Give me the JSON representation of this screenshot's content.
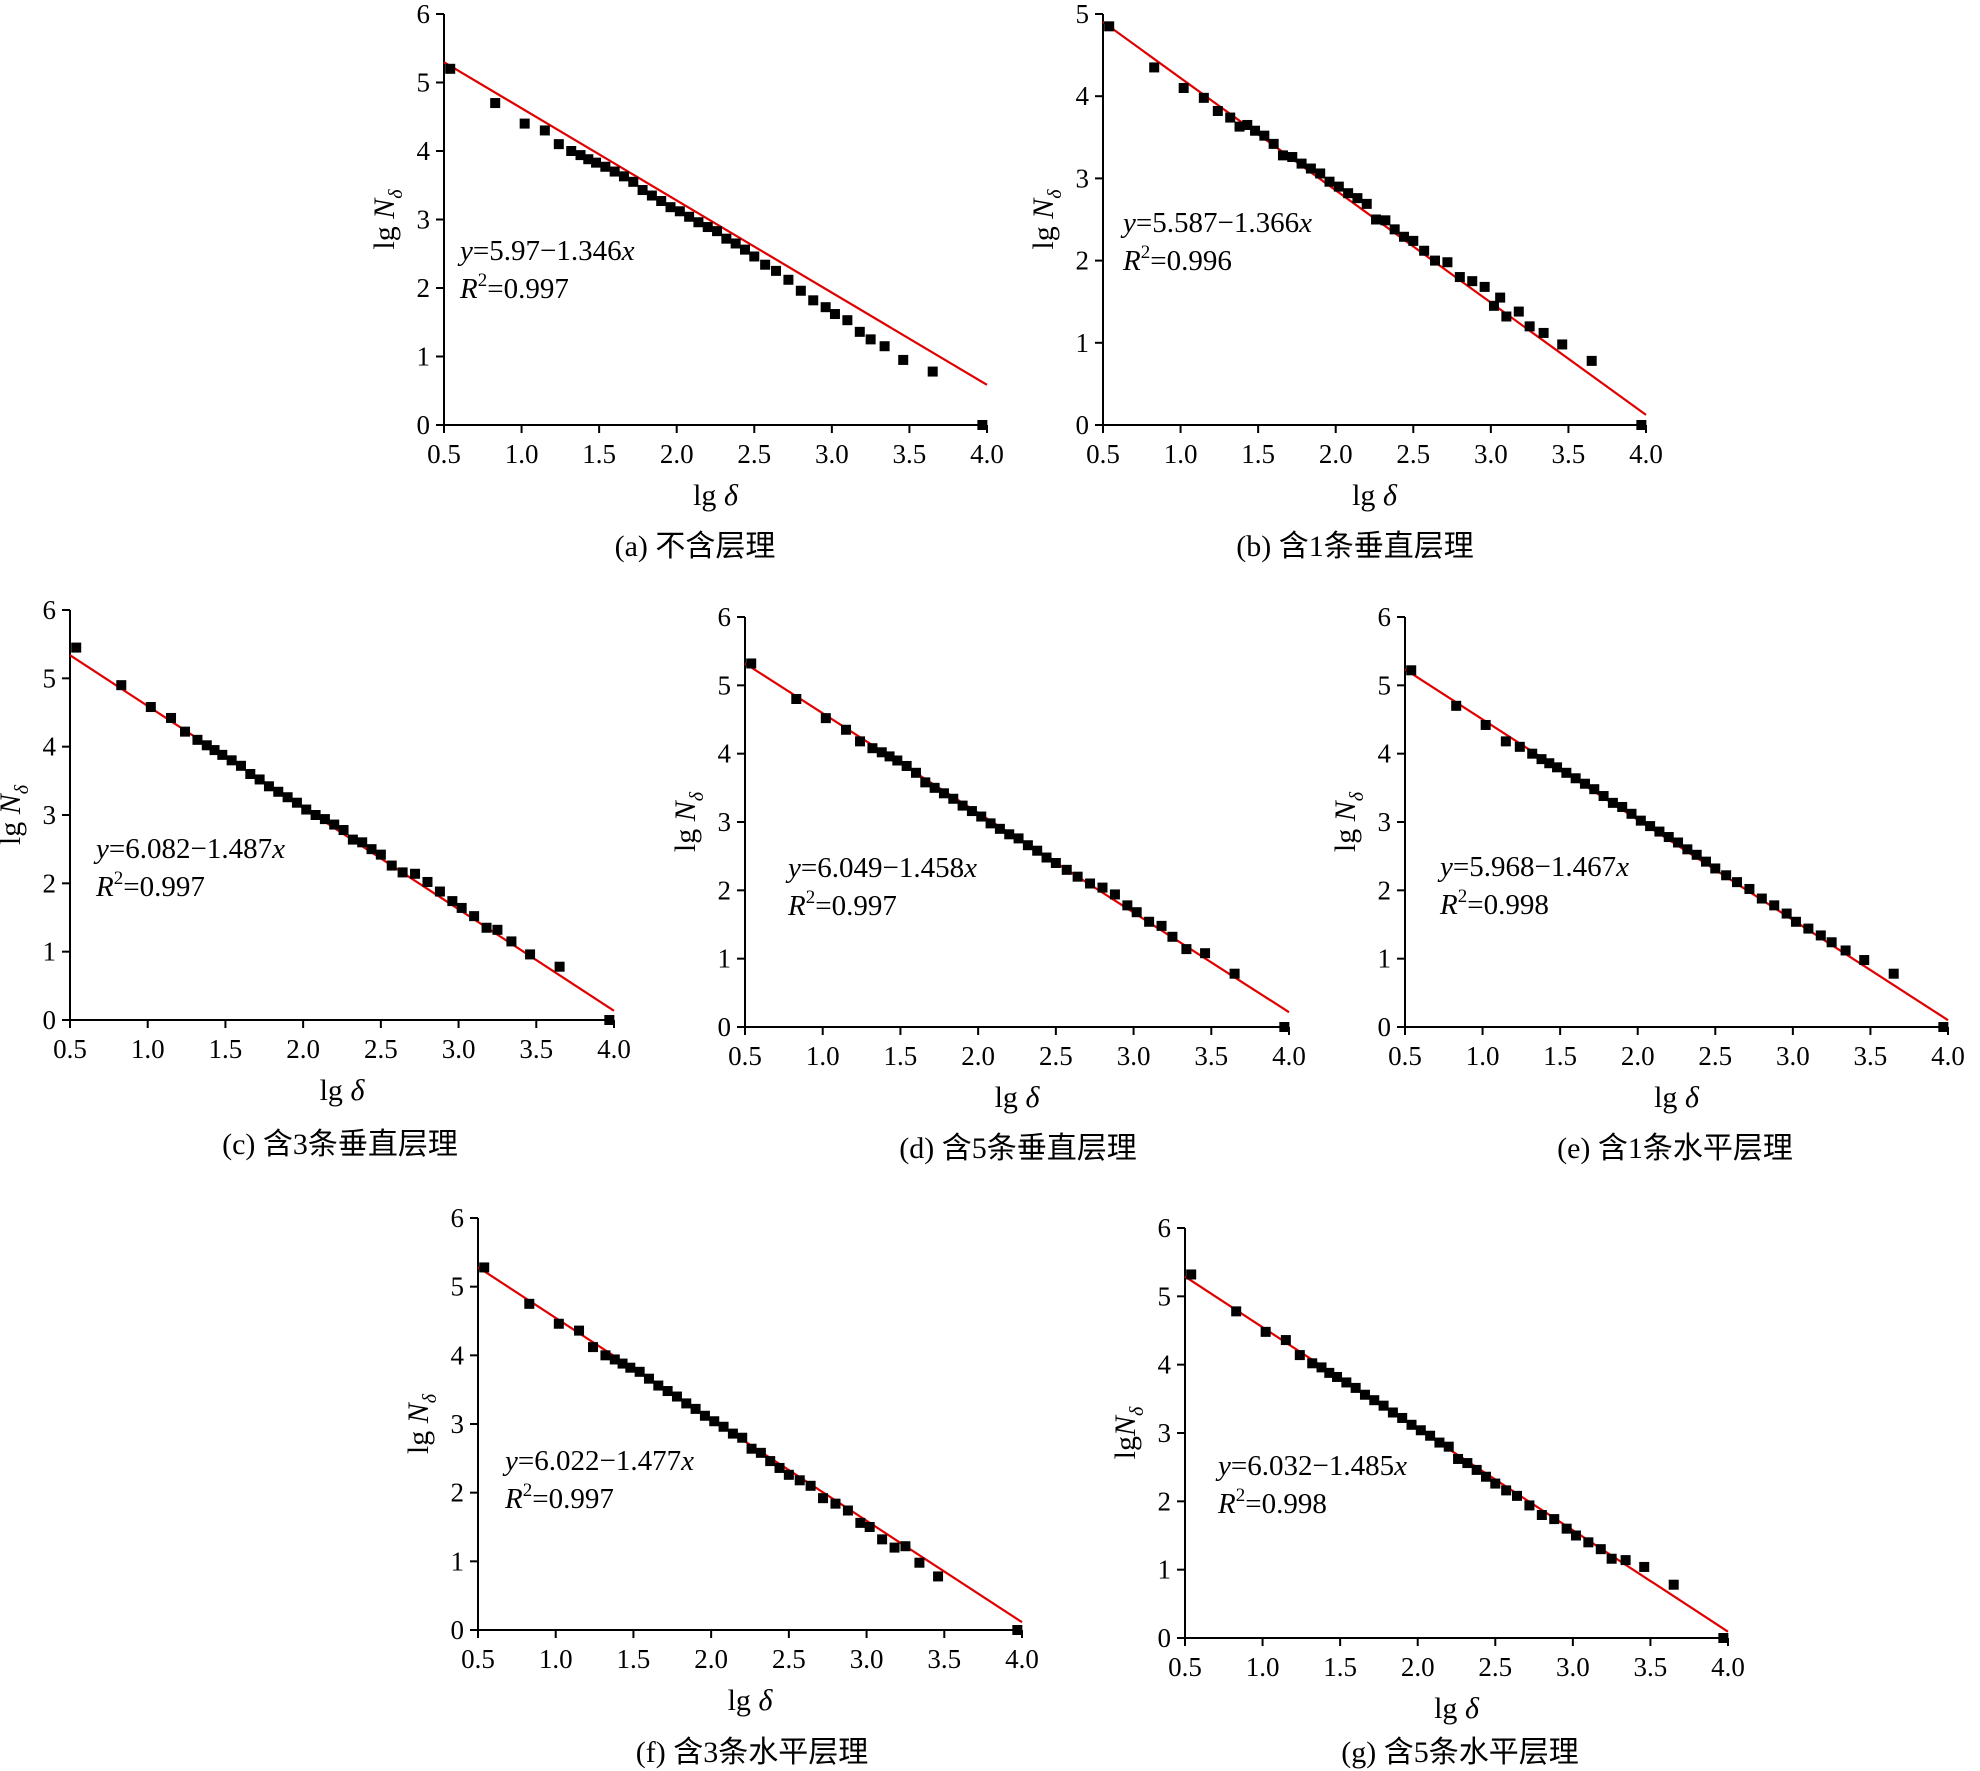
{
  "colors": {
    "fit_line": "#e00000",
    "points": "#000000",
    "axis": "#000000"
  },
  "x_axis_ticks": [
    "0.5",
    "1.0",
    "1.5",
    "2.0",
    "2.5",
    "3.0",
    "3.5",
    "4.0"
  ],
  "chart_data": [
    {
      "type": "scatter",
      "caption": "(a)  不含层理",
      "xlabel_base": "lg ",
      "xlabel_sym": "δ",
      "ylabel_base": "lg ",
      "ylabel_sym": "N",
      "ylabel_sub": "δ",
      "eq_y": "y",
      "eq_rest": "=5.97−1.346",
      "eq_x": "x",
      "r2_r": "R",
      "r2_sup": "2",
      "r2_rest": "=0.997",
      "xlim": [
        0.5,
        4.0
      ],
      "ylim": [
        0,
        6
      ],
      "yticks": [
        "0",
        "1",
        "2",
        "3",
        "4",
        "5",
        "6"
      ],
      "fit": {
        "intercept": 5.97,
        "slope": -1.346,
        "x_range": [
          0.5,
          4.0
        ]
      },
      "points": [
        [
          0.54,
          5.2
        ],
        [
          0.83,
          4.7
        ],
        [
          1.02,
          4.4
        ],
        [
          1.15,
          4.3
        ],
        [
          1.24,
          4.1
        ],
        [
          1.32,
          4.0
        ],
        [
          1.38,
          3.94
        ],
        [
          1.43,
          3.88
        ],
        [
          1.48,
          3.83
        ],
        [
          1.54,
          3.77
        ],
        [
          1.6,
          3.7
        ],
        [
          1.66,
          3.63
        ],
        [
          1.72,
          3.55
        ],
        [
          1.78,
          3.43
        ],
        [
          1.84,
          3.35
        ],
        [
          1.9,
          3.27
        ],
        [
          1.96,
          3.18
        ],
        [
          2.02,
          3.12
        ],
        [
          2.08,
          3.04
        ],
        [
          2.14,
          2.96
        ],
        [
          2.2,
          2.89
        ],
        [
          2.26,
          2.83
        ],
        [
          2.32,
          2.72
        ],
        [
          2.38,
          2.65
        ],
        [
          2.44,
          2.56
        ],
        [
          2.5,
          2.46
        ],
        [
          2.57,
          2.34
        ],
        [
          2.64,
          2.25
        ],
        [
          2.72,
          2.12
        ],
        [
          2.8,
          1.96
        ],
        [
          2.88,
          1.82
        ],
        [
          2.96,
          1.72
        ],
        [
          3.02,
          1.62
        ],
        [
          3.1,
          1.53
        ],
        [
          3.18,
          1.36
        ],
        [
          3.25,
          1.25
        ],
        [
          3.34,
          1.15
        ],
        [
          3.46,
          0.95
        ],
        [
          3.65,
          0.78
        ],
        [
          3.97,
          0.0
        ]
      ]
    },
    {
      "type": "scatter",
      "caption": "(b)  含1条垂直层理",
      "xlabel_base": "lg ",
      "xlabel_sym": "δ",
      "ylabel_base": "lg ",
      "ylabel_sym": "N",
      "ylabel_sub": "δ",
      "eq_y": "y",
      "eq_rest": "=5.587−1.366",
      "eq_x": "x",
      "r2_r": "R",
      "r2_sup": "2",
      "r2_rest": "=0.996",
      "xlim": [
        0.5,
        4.0
      ],
      "ylim": [
        0,
        5
      ],
      "yticks": [
        "0",
        "1",
        "2",
        "3",
        "4",
        "5"
      ],
      "fit": {
        "intercept": 5.587,
        "slope": -1.366,
        "x_range": [
          0.5,
          4.0
        ]
      },
      "points": [
        [
          0.54,
          4.85
        ],
        [
          0.83,
          4.35
        ],
        [
          1.02,
          4.1
        ],
        [
          1.15,
          3.98
        ],
        [
          1.24,
          3.82
        ],
        [
          1.32,
          3.74
        ],
        [
          1.38,
          3.63
        ],
        [
          1.43,
          3.65
        ],
        [
          1.48,
          3.58
        ],
        [
          1.54,
          3.52
        ],
        [
          1.6,
          3.42
        ],
        [
          1.66,
          3.28
        ],
        [
          1.72,
          3.26
        ],
        [
          1.78,
          3.18
        ],
        [
          1.84,
          3.12
        ],
        [
          1.9,
          3.06
        ],
        [
          1.96,
          2.96
        ],
        [
          2.02,
          2.9
        ],
        [
          2.08,
          2.82
        ],
        [
          2.14,
          2.76
        ],
        [
          2.2,
          2.69
        ],
        [
          2.26,
          2.5
        ],
        [
          2.32,
          2.49
        ],
        [
          2.38,
          2.38
        ],
        [
          2.44,
          2.29
        ],
        [
          2.5,
          2.24
        ],
        [
          2.57,
          2.12
        ],
        [
          2.64,
          2.0
        ],
        [
          2.72,
          1.98
        ],
        [
          2.8,
          1.8
        ],
        [
          2.88,
          1.75
        ],
        [
          2.96,
          1.68
        ],
        [
          3.02,
          1.45
        ],
        [
          3.06,
          1.55
        ],
        [
          3.1,
          1.32
        ],
        [
          3.18,
          1.38
        ],
        [
          3.25,
          1.2
        ],
        [
          3.34,
          1.12
        ],
        [
          3.46,
          0.98
        ],
        [
          3.65,
          0.78
        ],
        [
          3.97,
          0.0
        ]
      ]
    },
    {
      "type": "scatter",
      "caption": "(c)  含3条垂直层理",
      "xlabel_base": "lg ",
      "xlabel_sym": "δ",
      "ylabel_base": "lg ",
      "ylabel_sym": "N",
      "ylabel_sub": "δ",
      "eq_y": "y",
      "eq_rest": "=6.082−1.487",
      "eq_x": "x",
      "r2_r": "R",
      "r2_sup": "2",
      "r2_rest": "=0.997",
      "xlim": [
        0.5,
        4.0
      ],
      "ylim": [
        0,
        6
      ],
      "yticks": [
        "0",
        "1",
        "2",
        "3",
        "4",
        "5",
        "6"
      ],
      "fit": {
        "intercept": 6.082,
        "slope": -1.487,
        "x_range": [
          0.5,
          4.0
        ]
      },
      "points": [
        [
          0.54,
          5.45
        ],
        [
          0.83,
          4.9
        ],
        [
          1.02,
          4.58
        ],
        [
          1.15,
          4.42
        ],
        [
          1.24,
          4.22
        ],
        [
          1.32,
          4.1
        ],
        [
          1.38,
          4.02
        ],
        [
          1.43,
          3.95
        ],
        [
          1.48,
          3.88
        ],
        [
          1.54,
          3.8
        ],
        [
          1.6,
          3.72
        ],
        [
          1.66,
          3.6
        ],
        [
          1.72,
          3.52
        ],
        [
          1.78,
          3.42
        ],
        [
          1.84,
          3.34
        ],
        [
          1.9,
          3.26
        ],
        [
          1.96,
          3.18
        ],
        [
          2.02,
          3.08
        ],
        [
          2.08,
          3.0
        ],
        [
          2.14,
          2.94
        ],
        [
          2.2,
          2.86
        ],
        [
          2.26,
          2.78
        ],
        [
          2.32,
          2.64
        ],
        [
          2.38,
          2.6
        ],
        [
          2.44,
          2.5
        ],
        [
          2.5,
          2.42
        ],
        [
          2.57,
          2.26
        ],
        [
          2.64,
          2.16
        ],
        [
          2.72,
          2.14
        ],
        [
          2.8,
          2.02
        ],
        [
          2.88,
          1.88
        ],
        [
          2.96,
          1.74
        ],
        [
          3.02,
          1.64
        ],
        [
          3.1,
          1.52
        ],
        [
          3.18,
          1.35
        ],
        [
          3.25,
          1.32
        ],
        [
          3.34,
          1.15
        ],
        [
          3.46,
          0.96
        ],
        [
          3.65,
          0.78
        ],
        [
          3.97,
          0.0
        ]
      ]
    },
    {
      "type": "scatter",
      "caption": "(d)  含5条垂直层理",
      "xlabel_base": "lg ",
      "xlabel_sym": "δ",
      "ylabel_base": "lg ",
      "ylabel_sym": "N",
      "ylabel_sub": "δ",
      "eq_y": "y",
      "eq_rest": "=6.049−1.458",
      "eq_x": "x",
      "r2_r": "R",
      "r2_sup": "2",
      "r2_rest": "=0.997",
      "xlim": [
        0.5,
        4.0
      ],
      "ylim": [
        0,
        6
      ],
      "yticks": [
        "0",
        "1",
        "2",
        "3",
        "4",
        "5",
        "6"
      ],
      "fit": {
        "intercept": 6.049,
        "slope": -1.458,
        "x_range": [
          0.5,
          4.0
        ]
      },
      "points": [
        [
          0.54,
          5.32
        ],
        [
          0.83,
          4.8
        ],
        [
          1.02,
          4.52
        ],
        [
          1.15,
          4.35
        ],
        [
          1.24,
          4.18
        ],
        [
          1.32,
          4.08
        ],
        [
          1.38,
          4.02
        ],
        [
          1.43,
          3.96
        ],
        [
          1.48,
          3.9
        ],
        [
          1.54,
          3.82
        ],
        [
          1.6,
          3.72
        ],
        [
          1.66,
          3.58
        ],
        [
          1.72,
          3.5
        ],
        [
          1.78,
          3.42
        ],
        [
          1.84,
          3.34
        ],
        [
          1.9,
          3.24
        ],
        [
          1.96,
          3.16
        ],
        [
          2.02,
          3.08
        ],
        [
          2.08,
          2.98
        ],
        [
          2.14,
          2.9
        ],
        [
          2.2,
          2.82
        ],
        [
          2.26,
          2.76
        ],
        [
          2.32,
          2.66
        ],
        [
          2.38,
          2.58
        ],
        [
          2.44,
          2.48
        ],
        [
          2.5,
          2.4
        ],
        [
          2.57,
          2.3
        ],
        [
          2.64,
          2.2
        ],
        [
          2.72,
          2.1
        ],
        [
          2.8,
          2.04
        ],
        [
          2.88,
          1.94
        ],
        [
          2.96,
          1.78
        ],
        [
          3.02,
          1.68
        ],
        [
          3.1,
          1.54
        ],
        [
          3.18,
          1.48
        ],
        [
          3.25,
          1.32
        ],
        [
          3.34,
          1.14
        ],
        [
          3.46,
          1.08
        ],
        [
          3.65,
          0.78
        ],
        [
          3.97,
          0.0
        ]
      ]
    },
    {
      "type": "scatter",
      "caption": "(e)  含1条水平层理",
      "xlabel_base": "lg ",
      "xlabel_sym": "δ",
      "ylabel_base": "lg ",
      "ylabel_sym": "N",
      "ylabel_sub": "δ",
      "eq_y": "y",
      "eq_rest": "=5.968−1.467",
      "eq_x": "x",
      "r2_r": "R",
      "r2_sup": "2",
      "r2_rest": "=0.998",
      "xlim": [
        0.5,
        4.0
      ],
      "ylim": [
        0,
        6
      ],
      "yticks": [
        "0",
        "1",
        "2",
        "3",
        "4",
        "5",
        "6"
      ],
      "fit": {
        "intercept": 5.968,
        "slope": -1.467,
        "x_range": [
          0.5,
          4.0
        ]
      },
      "points": [
        [
          0.54,
          5.22
        ],
        [
          0.83,
          4.7
        ],
        [
          1.02,
          4.42
        ],
        [
          1.15,
          4.18
        ],
        [
          1.24,
          4.1
        ],
        [
          1.32,
          4.0
        ],
        [
          1.38,
          3.92
        ],
        [
          1.43,
          3.86
        ],
        [
          1.48,
          3.8
        ],
        [
          1.54,
          3.72
        ],
        [
          1.6,
          3.64
        ],
        [
          1.66,
          3.56
        ],
        [
          1.72,
          3.48
        ],
        [
          1.78,
          3.38
        ],
        [
          1.84,
          3.28
        ],
        [
          1.9,
          3.22
        ],
        [
          1.96,
          3.12
        ],
        [
          2.02,
          3.02
        ],
        [
          2.08,
          2.94
        ],
        [
          2.14,
          2.86
        ],
        [
          2.2,
          2.78
        ],
        [
          2.26,
          2.7
        ],
        [
          2.32,
          2.6
        ],
        [
          2.38,
          2.52
        ],
        [
          2.44,
          2.42
        ],
        [
          2.5,
          2.32
        ],
        [
          2.57,
          2.22
        ],
        [
          2.64,
          2.12
        ],
        [
          2.72,
          2.02
        ],
        [
          2.8,
          1.88
        ],
        [
          2.88,
          1.78
        ],
        [
          2.96,
          1.66
        ],
        [
          3.02,
          1.54
        ],
        [
          3.1,
          1.44
        ],
        [
          3.18,
          1.34
        ],
        [
          3.25,
          1.24
        ],
        [
          3.34,
          1.12
        ],
        [
          3.46,
          0.98
        ],
        [
          3.65,
          0.78
        ],
        [
          3.97,
          0.0
        ]
      ]
    },
    {
      "type": "scatter",
      "caption": "(f)  含3条水平层理",
      "xlabel_base": "lg ",
      "xlabel_sym": "δ",
      "ylabel_base": "lg ",
      "ylabel_sym": "N",
      "ylabel_sub": "δ",
      "eq_y": "y",
      "eq_rest": "=6.022−1.477",
      "eq_x": "x",
      "r2_r": "R",
      "r2_sup": "2",
      "r2_rest": "=0.997",
      "xlim": [
        0.5,
        4.0
      ],
      "ylim": [
        0,
        6
      ],
      "yticks": [
        "0",
        "1",
        "2",
        "3",
        "4",
        "5",
        "6"
      ],
      "fit": {
        "intercept": 6.022,
        "slope": -1.477,
        "x_range": [
          0.5,
          4.0
        ]
      },
      "points": [
        [
          0.54,
          5.28
        ],
        [
          0.83,
          4.75
        ],
        [
          1.02,
          4.46
        ],
        [
          1.15,
          4.36
        ],
        [
          1.24,
          4.12
        ],
        [
          1.32,
          4.0
        ],
        [
          1.38,
          3.94
        ],
        [
          1.43,
          3.88
        ],
        [
          1.48,
          3.82
        ],
        [
          1.54,
          3.76
        ],
        [
          1.6,
          3.66
        ],
        [
          1.66,
          3.56
        ],
        [
          1.72,
          3.48
        ],
        [
          1.78,
          3.4
        ],
        [
          1.84,
          3.3
        ],
        [
          1.9,
          3.22
        ],
        [
          1.96,
          3.12
        ],
        [
          2.02,
          3.04
        ],
        [
          2.08,
          2.96
        ],
        [
          2.14,
          2.86
        ],
        [
          2.2,
          2.8
        ],
        [
          2.26,
          2.64
        ],
        [
          2.32,
          2.58
        ],
        [
          2.38,
          2.46
        ],
        [
          2.44,
          2.36
        ],
        [
          2.5,
          2.26
        ],
        [
          2.57,
          2.18
        ],
        [
          2.64,
          2.1
        ],
        [
          2.72,
          1.92
        ],
        [
          2.8,
          1.84
        ],
        [
          2.88,
          1.74
        ],
        [
          2.96,
          1.56
        ],
        [
          3.02,
          1.5
        ],
        [
          3.1,
          1.32
        ],
        [
          3.18,
          1.2
        ],
        [
          3.25,
          1.22
        ],
        [
          3.34,
          0.98
        ],
        [
          3.46,
          0.78
        ],
        [
          3.97,
          0.0
        ]
      ]
    },
    {
      "type": "scatter",
      "caption": "(g)  含5条水平层理",
      "xlabel_base": "lg ",
      "xlabel_sym": "δ",
      "ylabel_base": "lg",
      "ylabel_sym": "N",
      "ylabel_sub": "δ",
      "eq_y": "y",
      "eq_rest": "=6.032−1.485",
      "eq_x": "x",
      "r2_r": "R",
      "r2_sup": "2",
      "r2_rest": "=0.998",
      "xlim": [
        0.5,
        4.0
      ],
      "ylim": [
        0,
        6
      ],
      "yticks": [
        "0",
        "1",
        "2",
        "3",
        "4",
        "5",
        "6"
      ],
      "fit": {
        "intercept": 6.032,
        "slope": -1.485,
        "x_range": [
          0.5,
          4.0
        ]
      },
      "points": [
        [
          0.54,
          5.32
        ],
        [
          0.83,
          4.78
        ],
        [
          1.02,
          4.48
        ],
        [
          1.15,
          4.36
        ],
        [
          1.24,
          4.14
        ],
        [
          1.32,
          4.02
        ],
        [
          1.38,
          3.96
        ],
        [
          1.43,
          3.88
        ],
        [
          1.48,
          3.82
        ],
        [
          1.54,
          3.74
        ],
        [
          1.6,
          3.66
        ],
        [
          1.66,
          3.56
        ],
        [
          1.72,
          3.48
        ],
        [
          1.78,
          3.4
        ],
        [
          1.84,
          3.3
        ],
        [
          1.9,
          3.22
        ],
        [
          1.96,
          3.12
        ],
        [
          2.02,
          3.04
        ],
        [
          2.08,
          2.96
        ],
        [
          2.14,
          2.86
        ],
        [
          2.2,
          2.8
        ],
        [
          2.26,
          2.62
        ],
        [
          2.32,
          2.56
        ],
        [
          2.38,
          2.46
        ],
        [
          2.44,
          2.36
        ],
        [
          2.5,
          2.26
        ],
        [
          2.57,
          2.16
        ],
        [
          2.64,
          2.08
        ],
        [
          2.72,
          1.94
        ],
        [
          2.8,
          1.8
        ],
        [
          2.88,
          1.74
        ],
        [
          2.96,
          1.6
        ],
        [
          3.02,
          1.5
        ],
        [
          3.1,
          1.4
        ],
        [
          3.18,
          1.3
        ],
        [
          3.25,
          1.16
        ],
        [
          3.34,
          1.14
        ],
        [
          3.46,
          1.04
        ],
        [
          3.65,
          0.78
        ],
        [
          3.97,
          0.0
        ]
      ]
    }
  ]
}
